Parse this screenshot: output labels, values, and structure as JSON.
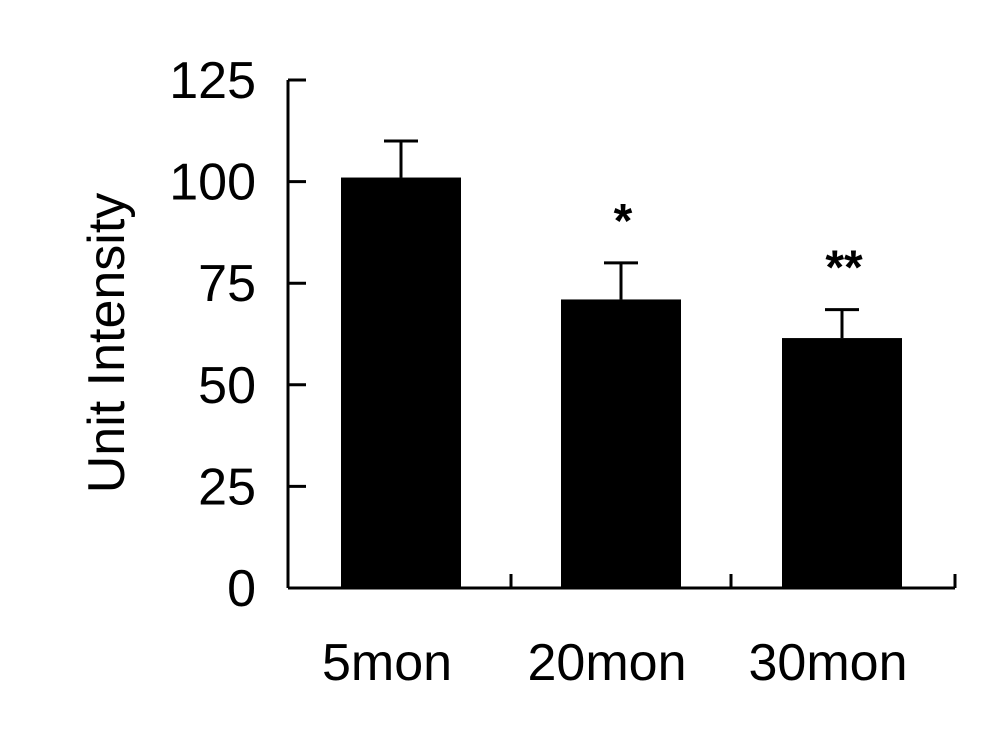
{
  "chart_data": {
    "type": "bar",
    "title": "",
    "xlabel": "",
    "ylabel": "Unit Intensity",
    "ylim": [
      0,
      125
    ],
    "yticks": [
      "0",
      "25",
      "50",
      "75",
      "100",
      "125"
    ],
    "categories": [
      "5mon",
      "20mon",
      "30mon"
    ],
    "values": [
      101,
      71,
      61.5
    ],
    "error": [
      9,
      9,
      7
    ],
    "annotations": [
      "",
      "*",
      "**"
    ],
    "bar_color": "#000000",
    "grid": false,
    "legend": "none"
  }
}
